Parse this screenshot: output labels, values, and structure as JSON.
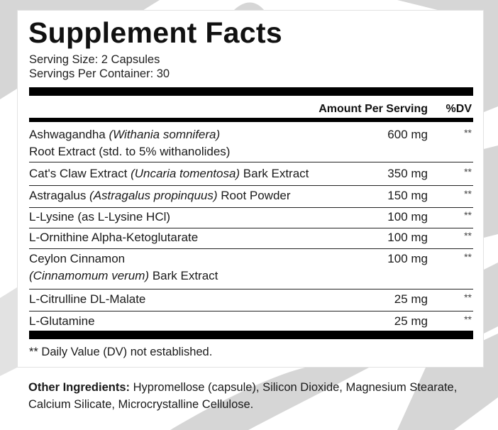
{
  "title": "Supplement Facts",
  "serving_size": "Serving Size: 2 Capsules",
  "servings_per_container": "Servings Per Container: 30",
  "header": {
    "amount": "Amount Per Serving",
    "dv": "%DV"
  },
  "ingredients": [
    {
      "name": "Ashwagandha ",
      "latin": "(Withania somnifera)",
      "suffix": "",
      "line2": "Root Extract (std. to 5% withanolides)",
      "amount": "600 mg",
      "dv": "**"
    },
    {
      "name": "Cat's Claw Extract ",
      "latin": "(Uncaria tomentosa)",
      "suffix": " Bark Extract",
      "amount": "350 mg",
      "dv": "**"
    },
    {
      "name": "Astragalus ",
      "latin": "(Astragalus propinquus)",
      "suffix": " Root Powder",
      "amount": "150 mg",
      "dv": "**"
    },
    {
      "name": "L-Lysine (as L-Lysine HCl)",
      "amount": "100 mg",
      "dv": "**"
    },
    {
      "name": "L-Ornithine Alpha-Ketoglutarate",
      "amount": "100 mg",
      "dv": "**"
    },
    {
      "name": "Ceylon Cinnamon",
      "latin2": "(Cinnamomum verum)",
      "suffix2": " Bark Extract",
      "amount": "100 mg",
      "dv": "**"
    },
    {
      "name": "L-Citrulline DL-Malate",
      "amount": "25 mg",
      "dv": "**"
    },
    {
      "name": "L-Glutamine",
      "amount": "25 mg",
      "dv": "**"
    }
  ],
  "footnote": "** Daily Value (DV) not established.",
  "other_ingredients": {
    "label": "Other Ingredients:",
    "text": " Hypromellose (capsule), Silicon Dioxide, Magnesium Stearate, Calcium Silicate, Microcrystalline Cellulose."
  },
  "colors": {
    "background_swoosh": "#d6d6d6",
    "text": "#1a1a1a",
    "rule": "#000000"
  }
}
